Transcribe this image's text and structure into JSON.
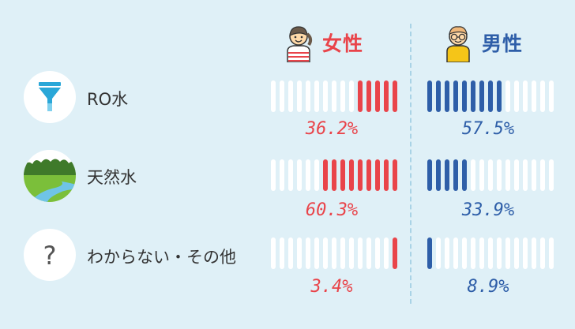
{
  "columns": {
    "female": {
      "label": "女性",
      "icon": "girl-avatar-icon",
      "color": "#e9444a"
    },
    "male": {
      "label": "男性",
      "icon": "boy-avatar-icon",
      "color": "#2e5ea8"
    }
  },
  "chart_data": {
    "type": "bar",
    "segments_per_bar": 15,
    "categories": [
      "RO水",
      "天然水",
      "わからない・その他"
    ],
    "category_icons": [
      "funnel-icon",
      "nature-landscape-icon",
      "question-mark-icon"
    ],
    "series": [
      {
        "name": "女性",
        "values": [
          36.2,
          60.3,
          3.4
        ],
        "labels": [
          "36.2%",
          "60.3%",
          "3.4%"
        ],
        "color": "#e9444a"
      },
      {
        "name": "男性",
        "values": [
          57.5,
          33.9,
          8.9
        ],
        "labels": [
          "57.5%",
          "33.9%",
          "8.9%"
        ],
        "color": "#2e5ea8"
      }
    ]
  }
}
